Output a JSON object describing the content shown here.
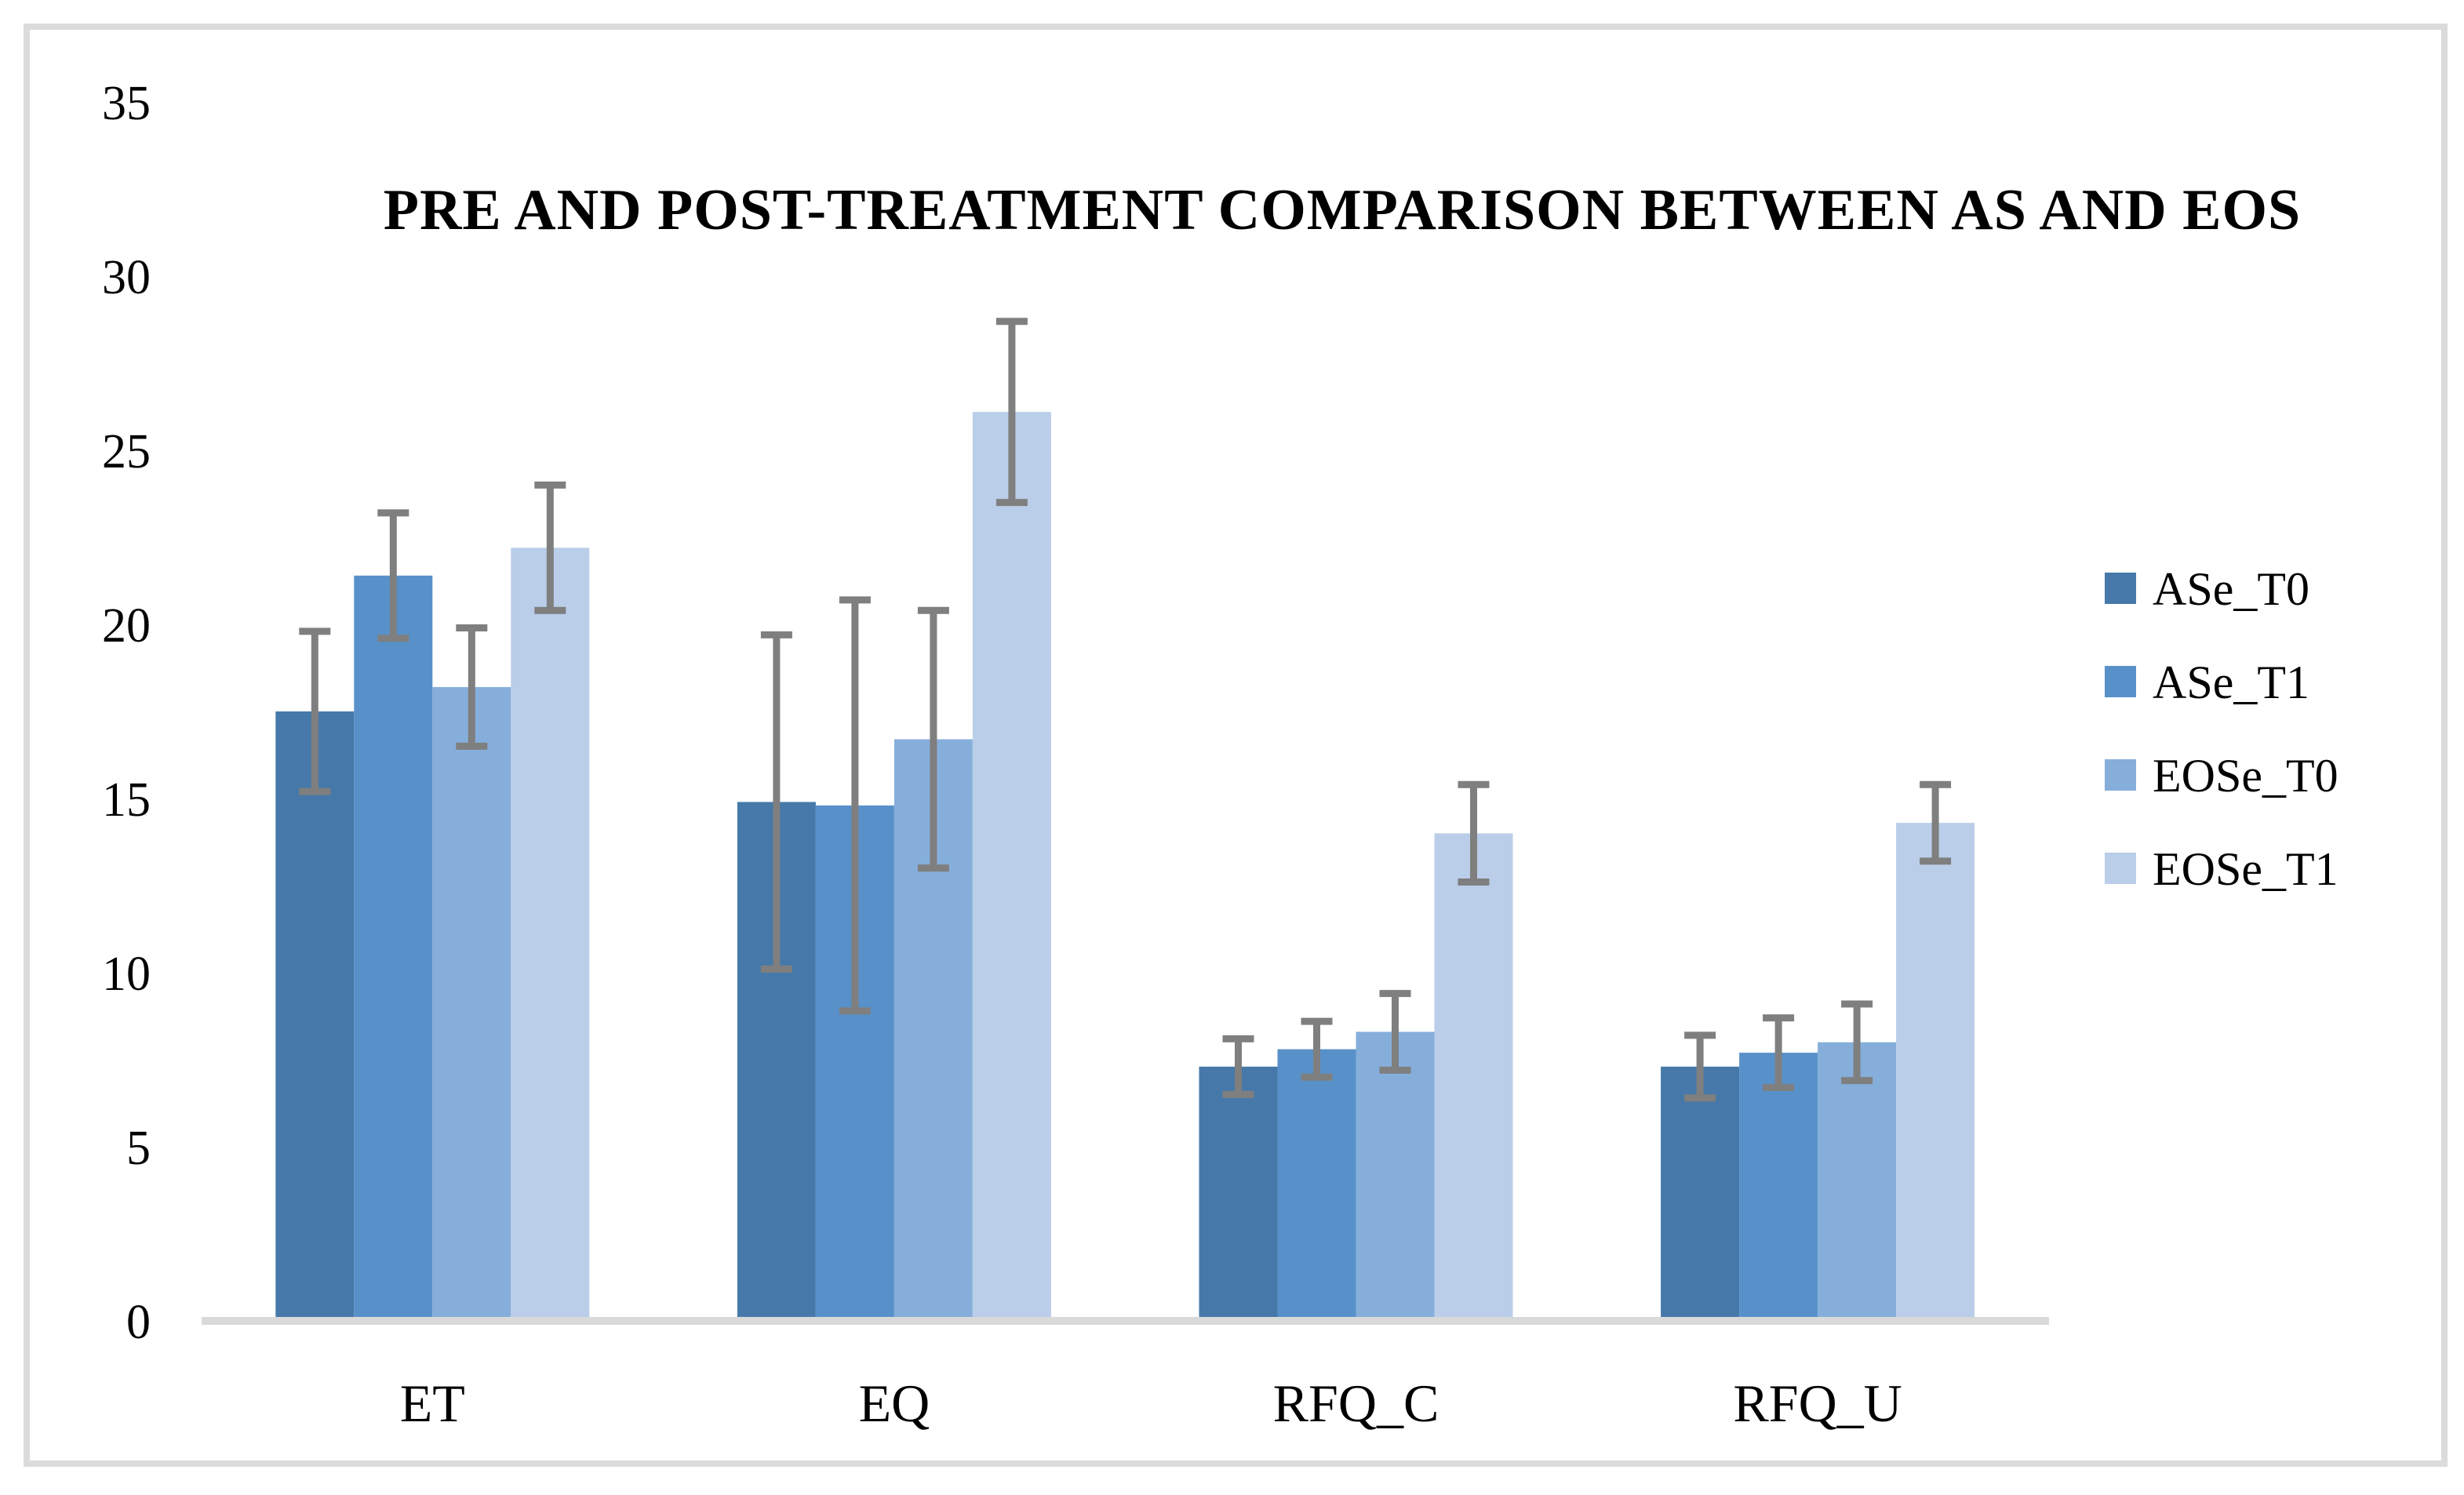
{
  "figure": {
    "background": "#ffffff",
    "border_color": "#dbdbdb"
  },
  "chart_data": {
    "type": "bar",
    "title": "PRE AND POST-TREATMENT COMPARISON BETWEEN AS AND EOS",
    "categories": [
      "ET",
      "EQ",
      "RFQ_C",
      "RFQ_U"
    ],
    "series": [
      {
        "name": "ASe_T0",
        "color": "#4679a9",
        "values": [
          17.5,
          14.9,
          7.3,
          7.3
        ],
        "errors": [
          2.3,
          4.8,
          0.8,
          0.9
        ]
      },
      {
        "name": "ASe_T1",
        "color": "#5891c9",
        "values": [
          21.4,
          14.8,
          7.8,
          7.7
        ],
        "errors": [
          1.8,
          5.9,
          0.8,
          1.0
        ]
      },
      {
        "name": "EOSe_T0",
        "color": "#86aedb",
        "values": [
          18.2,
          16.7,
          8.3,
          8.0
        ],
        "errors": [
          1.7,
          3.7,
          1.1,
          1.1
        ]
      },
      {
        "name": "EOSe_T1",
        "color": "#bacee9",
        "values": [
          22.2,
          26.1,
          14.0,
          14.3
        ],
        "errors": [
          1.8,
          2.6,
          1.4,
          1.1
        ]
      }
    ],
    "y_axis": {
      "min": 0,
      "max": 35,
      "tick_step": 5,
      "tick_labels": [
        "0",
        "5",
        "10",
        "15",
        "20",
        "25",
        "30",
        "35"
      ]
    },
    "xlabel": "",
    "ylabel": "",
    "grid": false,
    "legend_position": "right",
    "error_bar_color": "#7f7f7f",
    "axis_line_color": "#d9d9d9"
  }
}
